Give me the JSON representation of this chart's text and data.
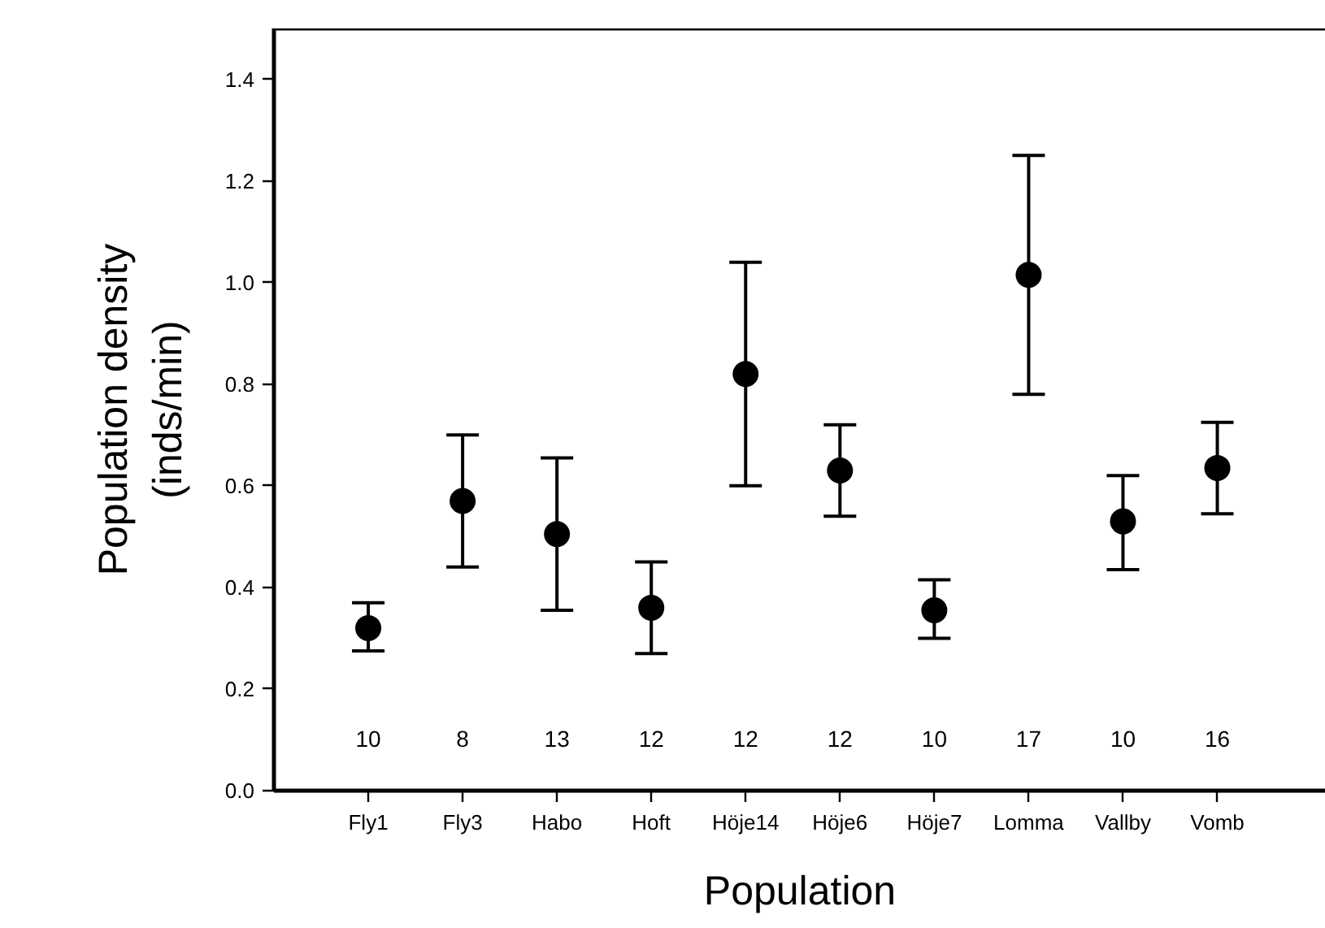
{
  "chart_data": {
    "type": "scatter",
    "xlabel": "Population",
    "ylabel": "Population density\n(inds/min)",
    "categories": [
      "Fly1",
      "Fly3",
      "Habo",
      "Hoft",
      "Höje14",
      "Höje6",
      "Höje7",
      "Lomma",
      "Vallby",
      "Vomb"
    ],
    "series": [
      {
        "color": "#000000",
        "values": [
          0.32,
          0.57,
          0.505,
          0.36,
          0.82,
          0.63,
          0.355,
          1.015,
          0.53,
          0.635
        ],
        "errors": [
          [
            0.275,
            0.37
          ],
          [
            0.44,
            0.7
          ],
          [
            0.355,
            0.655
          ],
          [
            0.27,
            0.45
          ],
          [
            0.6,
            1.04
          ],
          [
            0.54,
            0.72
          ],
          [
            0.3,
            0.415
          ],
          [
            0.78,
            1.25
          ],
          [
            0.435,
            0.62
          ],
          [
            0.545,
            0.725
          ]
        ]
      }
    ],
    "ylim": [
      0,
      1.5
    ],
    "yticks": [
      {
        "value": 0,
        "label": "0.0"
      },
      0.2,
      0.4,
      0.6,
      0.8,
      {
        "value": 1,
        "label": "1.0"
      },
      1.2,
      1.4
    ],
    "marker": "circle",
    "annotations": [
      "10",
      "8",
      "13",
      "12",
      "12",
      "12",
      "10",
      "17",
      "10",
      "16"
    ]
  }
}
